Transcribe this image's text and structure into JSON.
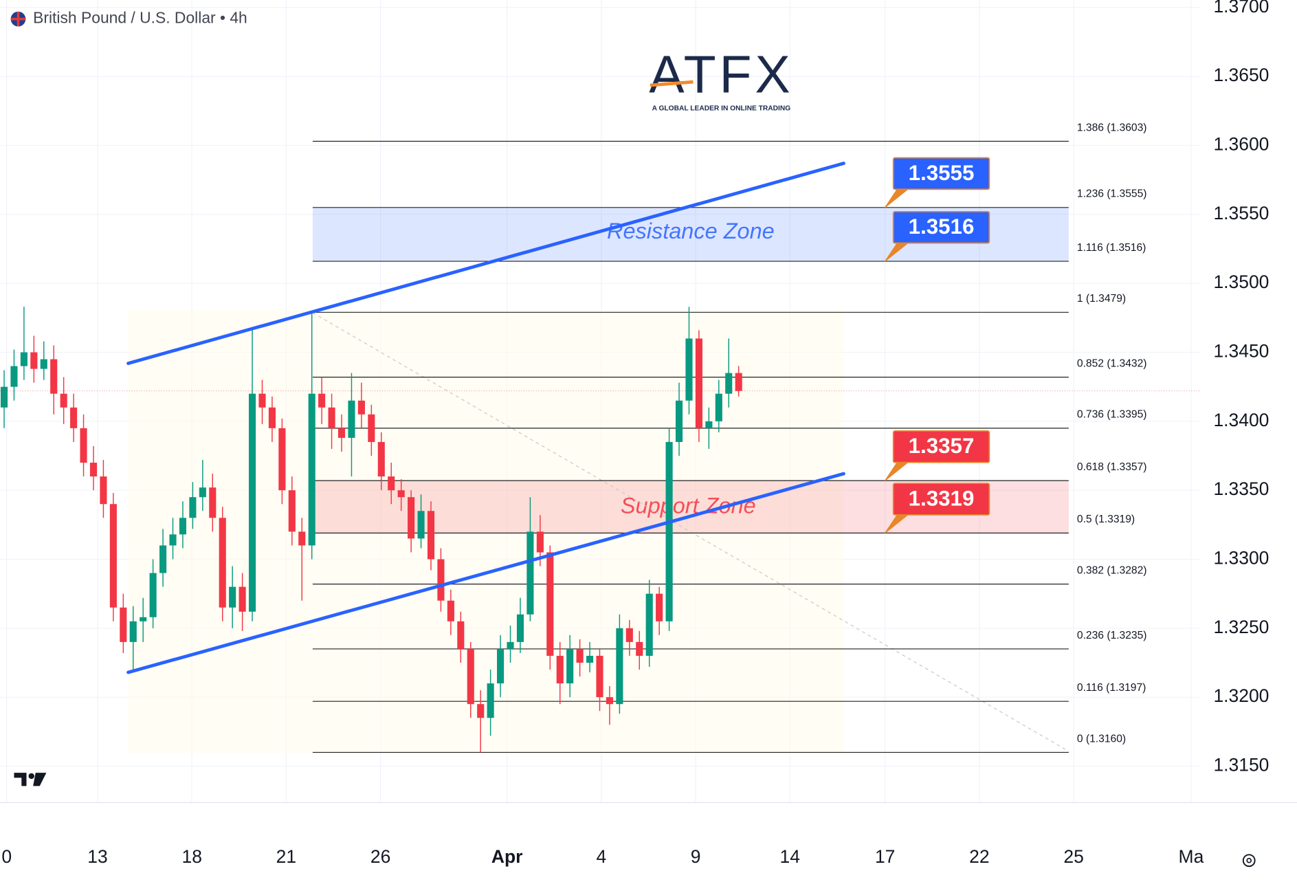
{
  "chart_data": {
    "type": "candlestick",
    "title": "British Pound / U.S. Dollar • 4h",
    "logo": {
      "name": "ATFX",
      "tagline": "A GLOBAL LEADER IN ONLINE TRADING"
    },
    "ylim": [
      1.315,
      1.37
    ],
    "yticks": [
      {
        "value": 1.37,
        "label": "1.3700"
      },
      {
        "value": 1.365,
        "label": "1.3650"
      },
      {
        "value": 1.36,
        "label": "1.3600"
      },
      {
        "value": 1.355,
        "label": "1.3550"
      },
      {
        "value": 1.35,
        "label": "1.3500"
      },
      {
        "value": 1.345,
        "label": "1.3450"
      },
      {
        "value": 1.34,
        "label": "1.3400"
      },
      {
        "value": 1.335,
        "label": "1.3350"
      },
      {
        "value": 1.33,
        "label": "1.3300"
      },
      {
        "value": 1.325,
        "label": "1.3250"
      },
      {
        "value": 1.32,
        "label": "1.3200"
      },
      {
        "value": 1.315,
        "label": "1.3150"
      }
    ],
    "grid": true,
    "x_labels": [
      "0",
      "13",
      "18",
      "21",
      "26",
      "Apr",
      "4",
      "9",
      "14",
      "17",
      "22",
      "25",
      "Ma"
    ],
    "up_color": "#089981",
    "down_color": "#f23645",
    "open": [
      1.341,
      1.3425,
      1.344,
      1.345,
      1.3438,
      1.3445,
      1.342,
      1.341,
      1.3395,
      1.337,
      1.336,
      1.334,
      1.3265,
      1.324,
      1.3255,
      1.3258,
      1.329,
      1.331,
      1.3318,
      1.333,
      1.3345,
      1.3352,
      1.333,
      1.3265,
      1.328,
      1.3262,
      1.342,
      1.341,
      1.3395,
      1.335,
      1.332,
      1.331,
      1.342,
      1.341,
      1.3395,
      1.3388,
      1.3415,
      1.3405,
      1.3385,
      1.336,
      1.335,
      1.3345,
      1.3315,
      1.3335,
      1.33,
      1.327,
      1.3255,
      1.3235,
      1.3195,
      1.3185,
      1.321,
      1.3235,
      1.324,
      1.326,
      1.332,
      1.3305,
      1.323,
      1.321,
      1.3235,
      1.3225,
      1.323,
      1.32,
      1.3195,
      1.325,
      1.324,
      1.323,
      1.3275,
      1.3255,
      1.3385,
      1.3415,
      1.346,
      1.3395,
      1.34,
      1.342,
      1.3435
    ],
    "high": [
      1.3437,
      1.3452,
      1.3483,
      1.3462,
      1.3458,
      1.3455,
      1.3432,
      1.342,
      1.3405,
      1.3382,
      1.3372,
      1.3348,
      1.3275,
      1.3266,
      1.3272,
      1.33,
      1.3322,
      1.333,
      1.3342,
      1.3356,
      1.3372,
      1.3362,
      1.3338,
      1.3295,
      1.329,
      1.3468,
      1.343,
      1.3418,
      1.3402,
      1.336,
      1.333,
      1.3479,
      1.3432,
      1.342,
      1.3405,
      1.3435,
      1.3428,
      1.3412,
      1.3392,
      1.337,
      1.3358,
      1.335,
      1.3347,
      1.3342,
      1.3308,
      1.3278,
      1.3262,
      1.324,
      1.3205,
      1.322,
      1.3245,
      1.3252,
      1.3272,
      1.3345,
      1.3332,
      1.331,
      1.324,
      1.3245,
      1.3242,
      1.324,
      1.3235,
      1.3208,
      1.326,
      1.3256,
      1.3248,
      1.3285,
      1.328,
      1.3395,
      1.3428,
      1.3483,
      1.3466,
      1.341,
      1.343,
      1.346,
      1.344
    ],
    "low": [
      1.3395,
      1.3415,
      1.343,
      1.3428,
      1.343,
      1.3405,
      1.3398,
      1.3385,
      1.336,
      1.335,
      1.333,
      1.3255,
      1.3232,
      1.3219,
      1.324,
      1.325,
      1.328,
      1.33,
      1.3308,
      1.3322,
      1.3335,
      1.332,
      1.3255,
      1.325,
      1.3248,
      1.3255,
      1.3398,
      1.3385,
      1.334,
      1.331,
      1.327,
      1.33,
      1.3398,
      1.338,
      1.3378,
      1.336,
      1.3395,
      1.3375,
      1.335,
      1.334,
      1.3335,
      1.3305,
      1.3308,
      1.3292,
      1.3262,
      1.3245,
      1.3225,
      1.3185,
      1.316,
      1.3172,
      1.32,
      1.3225,
      1.3232,
      1.3255,
      1.3295,
      1.322,
      1.3195,
      1.32,
      1.3215,
      1.3218,
      1.319,
      1.318,
      1.3188,
      1.323,
      1.322,
      1.3222,
      1.3245,
      1.3248,
      1.3375,
      1.3405,
      1.3385,
      1.338,
      1.3392,
      1.341,
      1.3418
    ],
    "close": [
      1.3425,
      1.344,
      1.345,
      1.3438,
      1.3445,
      1.342,
      1.341,
      1.3395,
      1.337,
      1.336,
      1.334,
      1.3265,
      1.324,
      1.3255,
      1.3258,
      1.329,
      1.331,
      1.3318,
      1.333,
      1.3345,
      1.3352,
      1.333,
      1.3265,
      1.328,
      1.3262,
      1.342,
      1.341,
      1.3395,
      1.335,
      1.332,
      1.331,
      1.342,
      1.341,
      1.3395,
      1.3388,
      1.3415,
      1.3405,
      1.3385,
      1.336,
      1.335,
      1.3345,
      1.3315,
      1.3335,
      1.33,
      1.327,
      1.3255,
      1.3235,
      1.3195,
      1.3185,
      1.321,
      1.3235,
      1.324,
      1.326,
      1.332,
      1.3305,
      1.323,
      1.321,
      1.3235,
      1.3225,
      1.323,
      1.32,
      1.3195,
      1.325,
      1.324,
      1.323,
      1.3275,
      1.3255,
      1.3385,
      1.3415,
      1.346,
      1.3395,
      1.34,
      1.342,
      1.3435,
      1.3422
    ],
    "fib_levels": [
      {
        "value": 1.3603,
        "label": "1.386 (1.3603)"
      },
      {
        "value": 1.3555,
        "label": "1.236 (1.3555)"
      },
      {
        "value": 1.3516,
        "label": "1.116 (1.3516)"
      },
      {
        "value": 1.3479,
        "label": "1 (1.3479)"
      },
      {
        "value": 1.3432,
        "label": "0.852 (1.3432)"
      },
      {
        "value": 1.3395,
        "label": "0.736 (1.3395)"
      },
      {
        "value": 1.3357,
        "label": "0.618 (1.3357)"
      },
      {
        "value": 1.3319,
        "label": "0.5 (1.3319)"
      },
      {
        "value": 1.3282,
        "label": "0.382 (1.3282)"
      },
      {
        "value": 1.3235,
        "label": "0.236 (1.3235)"
      },
      {
        "value": 1.3197,
        "label": "0.116 (1.3197)"
      },
      {
        "value": 1.316,
        "label": "0 (1.3160)"
      }
    ],
    "zones": [
      {
        "name": "Resistance Zone",
        "range": [
          1.3516,
          1.3555
        ],
        "color": "#2962ff"
      },
      {
        "name": "Support Zone",
        "range": [
          1.3319,
          1.3357
        ],
        "color": "#f23645"
      }
    ],
    "callouts": [
      {
        "value": 1.3555,
        "color": "#2962ff"
      },
      {
        "value": 1.3516,
        "color": "#2962ff"
      },
      {
        "value": 1.3357,
        "color": "#f23645"
      },
      {
        "value": 1.3319,
        "color": "#f23645"
      }
    ],
    "trendlines": [
      {
        "values": [
          1.3442,
          1.3587
        ],
        "color": "#2962ff"
      },
      {
        "values": [
          1.3218,
          1.3362
        ],
        "color": "#2962ff"
      }
    ]
  }
}
